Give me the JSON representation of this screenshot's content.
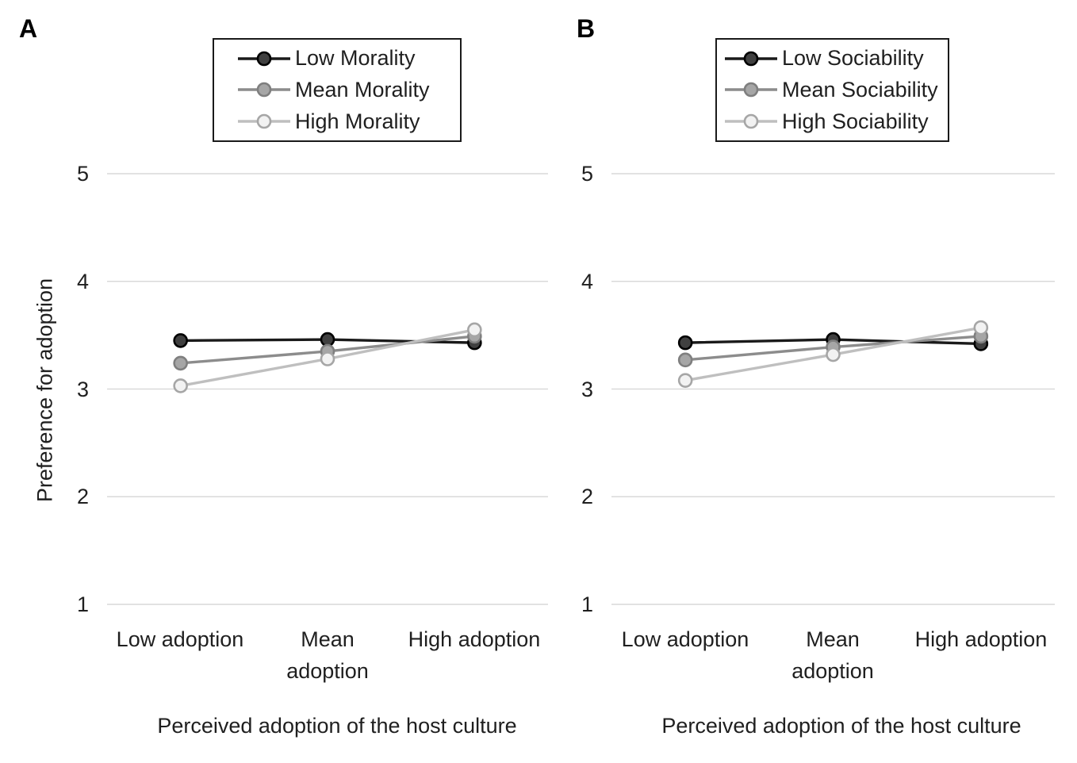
{
  "figure": {
    "panels": [
      {
        "label": "A"
      },
      {
        "label": "B"
      }
    ]
  },
  "chart_data": [
    {
      "type": "line",
      "panel_label": "A",
      "categories": [
        "Low adoption",
        "Mean adoption",
        "High adoption"
      ],
      "series": [
        {
          "name": "Low Morality",
          "values": [
            3.45,
            3.46,
            3.43
          ],
          "line_color": "#1a1a1a",
          "marker_fill": "#404040",
          "marker_stroke": "#000000"
        },
        {
          "name": "Mean Morality",
          "values": [
            3.24,
            3.35,
            3.49
          ],
          "line_color": "#8c8c8c",
          "marker_fill": "#a6a6a6",
          "marker_stroke": "#7f7f7f"
        },
        {
          "name": "High Morality",
          "values": [
            3.03,
            3.28,
            3.55
          ],
          "line_color": "#bfbfbf",
          "marker_fill": "#f2f2f2",
          "marker_stroke": "#a6a6a6"
        }
      ],
      "xlabel": "Perceived adoption of the host culture",
      "ylabel": "Preference for adoption",
      "ylim": [
        1,
        5
      ],
      "yticks": [
        1,
        2,
        3,
        4,
        5
      ],
      "grid": "horizontal",
      "gridline_color": "#d9d9d9",
      "legend_position": "top"
    },
    {
      "type": "line",
      "panel_label": "B",
      "categories": [
        "Low adoption",
        "Mean adoption",
        "High adoption"
      ],
      "series": [
        {
          "name": "Low Sociability",
          "values": [
            3.43,
            3.46,
            3.42
          ],
          "line_color": "#1a1a1a",
          "marker_fill": "#404040",
          "marker_stroke": "#000000"
        },
        {
          "name": "Mean Sociability",
          "values": [
            3.27,
            3.39,
            3.49
          ],
          "line_color": "#8c8c8c",
          "marker_fill": "#a6a6a6",
          "marker_stroke": "#7f7f7f"
        },
        {
          "name": "High Sociability",
          "values": [
            3.08,
            3.32,
            3.57
          ],
          "line_color": "#bfbfbf",
          "marker_fill": "#f2f2f2",
          "marker_stroke": "#a6a6a6"
        }
      ],
      "xlabel": "Perceived adoption of the host culture",
      "ylabel": "",
      "ylim": [
        1,
        5
      ],
      "yticks": [
        1,
        2,
        3,
        4,
        5
      ],
      "grid": "horizontal",
      "gridline_color": "#d9d9d9",
      "legend_position": "top"
    }
  ]
}
